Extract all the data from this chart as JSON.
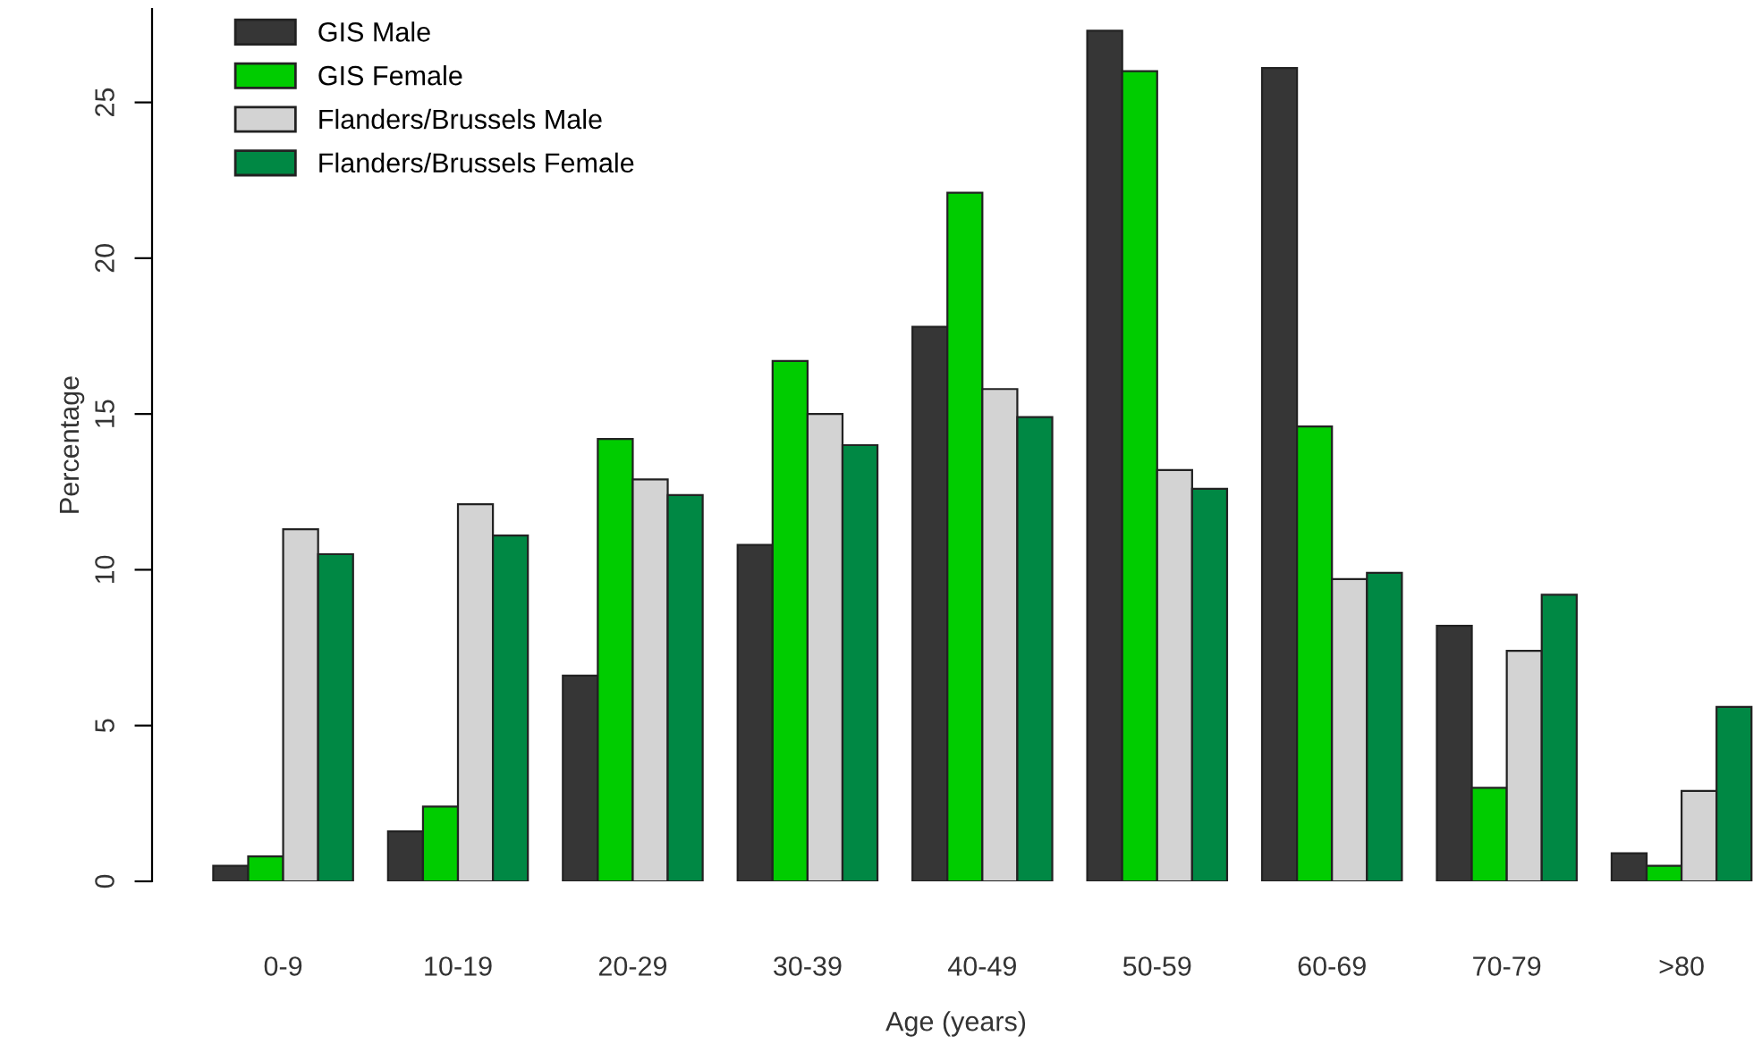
{
  "chart_data": {
    "type": "bar",
    "xlabel": "Age (years)",
    "ylabel": "Percentage",
    "categories": [
      "0-9",
      "10-19",
      "20-29",
      "30-39",
      "40-49",
      "50-59",
      "60-69",
      "70-79",
      ">80"
    ],
    "series": [
      {
        "name": "GIS Male",
        "color": "#363636",
        "values": [
          0.5,
          1.6,
          6.6,
          10.8,
          17.8,
          27.3,
          26.1,
          8.2,
          0.9
        ]
      },
      {
        "name": "GIS Female",
        "color": "#00cc00",
        "values": [
          0.8,
          2.4,
          14.2,
          16.7,
          22.1,
          26.0,
          14.6,
          3.0,
          0.5
        ]
      },
      {
        "name": "Flanders/Brussels Male",
        "color": "#d3d3d3",
        "values": [
          11.3,
          12.1,
          12.9,
          15.0,
          15.8,
          13.2,
          9.7,
          7.4,
          2.9
        ]
      },
      {
        "name": "Flanders/Brussels Female",
        "color": "#008844",
        "values": [
          10.5,
          11.1,
          12.4,
          14.0,
          14.9,
          12.6,
          9.9,
          9.2,
          5.6
        ]
      }
    ],
    "ylim": [
      0,
      28
    ],
    "yticks": [
      0,
      5,
      10,
      15,
      20,
      25
    ],
    "grid": false,
    "legend": "top left"
  }
}
